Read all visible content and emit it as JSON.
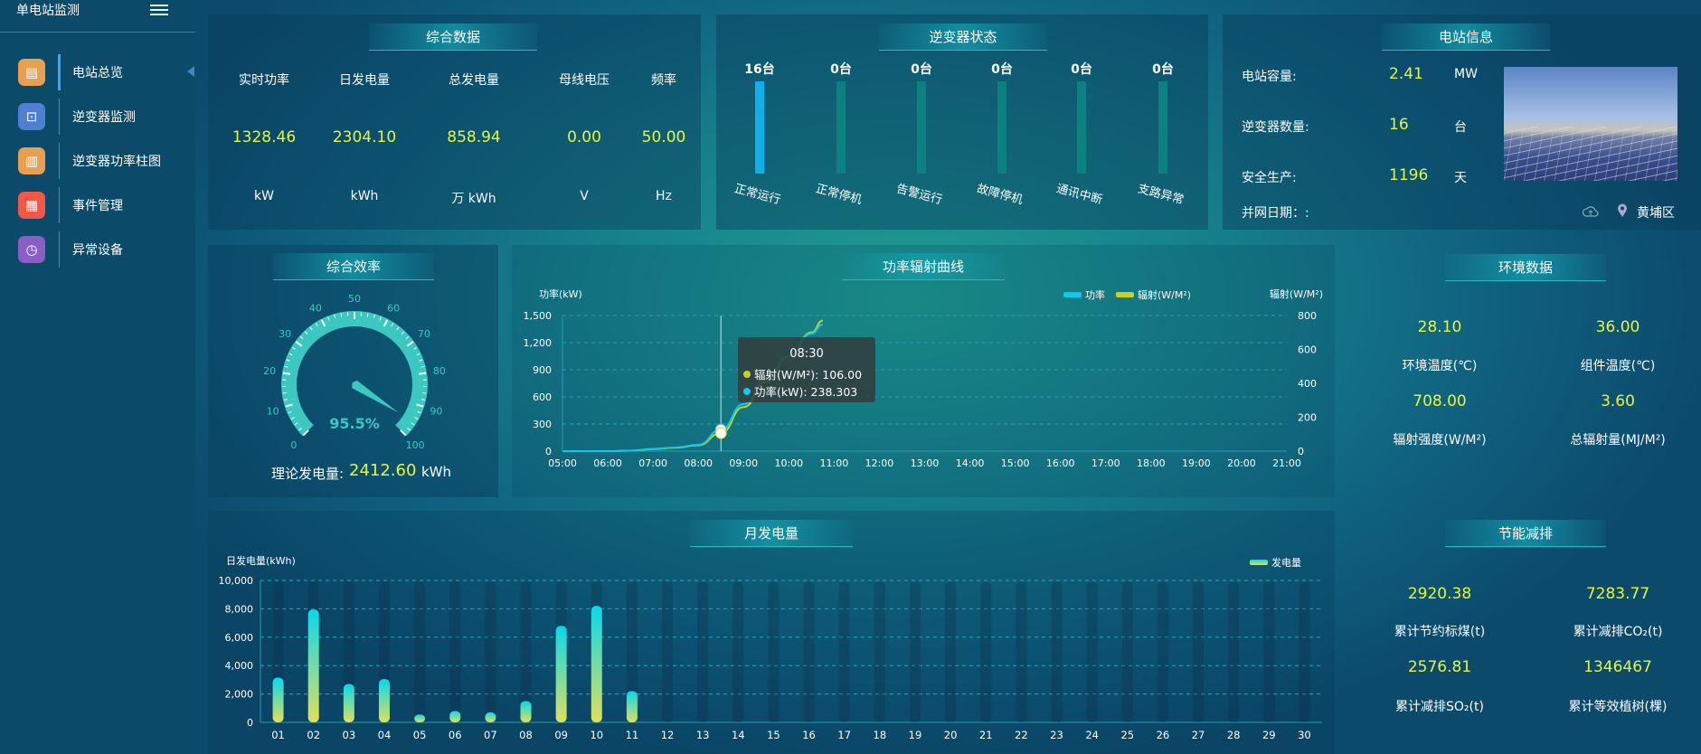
{
  "sidebar": {
    "title": "单电站监测",
    "items": [
      {
        "label": "电站总览",
        "icon": "document-icon",
        "color": "#e8a050",
        "active": true
      },
      {
        "label": "逆变器监测",
        "icon": "monitor-pulse-icon",
        "color": "#4f7fd0"
      },
      {
        "label": "逆变器功率柱图",
        "icon": "bar-chart-icon",
        "color": "#e8a050"
      },
      {
        "label": "事件管理",
        "icon": "notepad-icon",
        "color": "#f05848"
      },
      {
        "label": "异常设备",
        "icon": "list-clock-icon",
        "color": "#8a5ec6"
      }
    ]
  },
  "summary": {
    "title": "综合数据",
    "cols": [
      {
        "label": "实时功率",
        "value": "1328.46",
        "unit": "kW"
      },
      {
        "label": "日发电量",
        "value": "2304.10",
        "unit": "kWh"
      },
      {
        "label": "总发电量",
        "value": "858.94",
        "unit": "万  kWh"
      },
      {
        "label": "母线电压",
        "value": "0.00",
        "unit": "V"
      },
      {
        "label": "频率",
        "value": "50.00",
        "unit": "Hz"
      }
    ]
  },
  "inverter": {
    "title": "逆变器状态",
    "items": [
      {
        "count": "16台",
        "label": "正常运行",
        "color": "#12aeea"
      },
      {
        "count": "0台",
        "label": "正常停机",
        "color": "#0d8082"
      },
      {
        "count": "0台",
        "label": "告警运行",
        "color": "#0d8082"
      },
      {
        "count": "0台",
        "label": "故障停机",
        "color": "#0d8082"
      },
      {
        "count": "0台",
        "label": "通讯中断",
        "color": "#0d8082"
      },
      {
        "count": "0台",
        "label": "支路异常",
        "color": "#0d8082"
      }
    ]
  },
  "station": {
    "title": "电站信息",
    "rows": [
      {
        "label": "电站容量:",
        "value": "2.41",
        "unit": "MW"
      },
      {
        "label": "逆变器数量:",
        "value": "16",
        "unit": "台"
      },
      {
        "label": "安全生产:",
        "value": "1196",
        "unit": "天"
      }
    ],
    "grid_date_label": "并网日期：:",
    "location": "黄埔区"
  },
  "efficiency": {
    "title": "综合效率",
    "value": 95.5,
    "value_text": "95.5%",
    "min": 0,
    "max": 100,
    "ticks": [
      "0",
      "10",
      "20",
      "30",
      "40",
      "50",
      "60",
      "70",
      "80",
      "90",
      "100"
    ],
    "theory_label": "理论发电量:",
    "theory_value": "2412.60",
    "theory_unit": "kWh",
    "color": "#3cc8c0"
  },
  "chart_data": [
    {
      "type": "line",
      "title": "功率辐射曲线",
      "ylabel": "功率(kW)",
      "y2label": "辐射(W/M²)",
      "x": [
        "05:00",
        "05:30",
        "06:00",
        "06:30",
        "07:00",
        "07:30",
        "08:00",
        "08:30",
        "09:00",
        "09:30",
        "10:00",
        "10:30",
        "10:45"
      ],
      "xticks": [
        "05:00",
        "06:00",
        "07:00",
        "08:00",
        "09:00",
        "10:00",
        "11:00",
        "12:00",
        "13:00",
        "14:00",
        "15:00",
        "16:00",
        "17:00",
        "18:00",
        "19:00",
        "20:00",
        "21:00"
      ],
      "xlim": [
        "05:00",
        "21:00"
      ],
      "ylim": [
        0,
        1500
      ],
      "y2lim": [
        0,
        800
      ],
      "yticks": [
        "0",
        "300",
        "600",
        "900",
        "1,200",
        "1,500"
      ],
      "y2ticks": [
        "0",
        "200",
        "400",
        "600",
        "800"
      ],
      "legend_position": "top-right",
      "grid": true,
      "series": [
        {
          "name": "功率",
          "axis": "left",
          "color": "#12c8ea",
          "values": [
            0,
            0,
            0,
            5,
            25,
            40,
            70,
            238.303,
            520,
            800,
            1050,
            1300,
            1400
          ]
        },
        {
          "name": "辐射(W/M²)",
          "axis": "right",
          "color": "#c8d21e",
          "values": [
            0,
            0,
            0,
            3,
            12,
            20,
            35,
            106,
            260,
            410,
            560,
            700,
            770
          ]
        }
      ],
      "tooltip": {
        "time": "08:30",
        "rows": [
          {
            "text": "辐射(W/M²): 106.00",
            "color": "#c8d21e"
          },
          {
            "text": "功率(kW): 238.303",
            "color": "#12c8ea"
          }
        ]
      }
    },
    {
      "type": "bar",
      "title": "月发电量",
      "ylabel": "日发电量(kWh)",
      "ylim": [
        0,
        10000
      ],
      "yticks": [
        "0",
        "2,000",
        "4,000",
        "6,000",
        "8,000",
        "10,000"
      ],
      "legend_position": "top-right",
      "grid": true,
      "categories": [
        "01",
        "02",
        "03",
        "04",
        "05",
        "06",
        "07",
        "08",
        "09",
        "10",
        "11",
        "12",
        "13",
        "14",
        "15",
        "16",
        "17",
        "18",
        "19",
        "20",
        "21",
        "22",
        "23",
        "24",
        "25",
        "26",
        "27",
        "28",
        "29",
        "30"
      ],
      "series": [
        {
          "name": "发电量",
          "values": [
            3150,
            7950,
            2700,
            3050,
            550,
            800,
            700,
            1500,
            6800,
            8200,
            2200,
            null,
            null,
            null,
            null,
            null,
            null,
            null,
            null,
            null,
            null,
            null,
            null,
            null,
            null,
            null,
            null,
            null,
            null,
            null
          ]
        }
      ]
    }
  ],
  "environment": {
    "title": "环境数据",
    "items": [
      {
        "value": "28.10",
        "label": "环境温度(℃)"
      },
      {
        "value": "36.00",
        "label": "组件温度(℃)"
      },
      {
        "value": "708.00",
        "label": "辐射强度(W/M²)"
      },
      {
        "value": "3.60",
        "label": "总辐射量(MJ/M²)"
      }
    ]
  },
  "saving": {
    "title": "节能减排",
    "items": [
      {
        "value": "2920.38",
        "label": "累计节约标煤(t)"
      },
      {
        "value": "7283.77",
        "label": "累计减排CO₂(t)"
      },
      {
        "value": "2576.81",
        "label": "累计减排SO₂(t)"
      },
      {
        "value": "1346467",
        "label": "累计等效植树(棵)"
      }
    ]
  }
}
